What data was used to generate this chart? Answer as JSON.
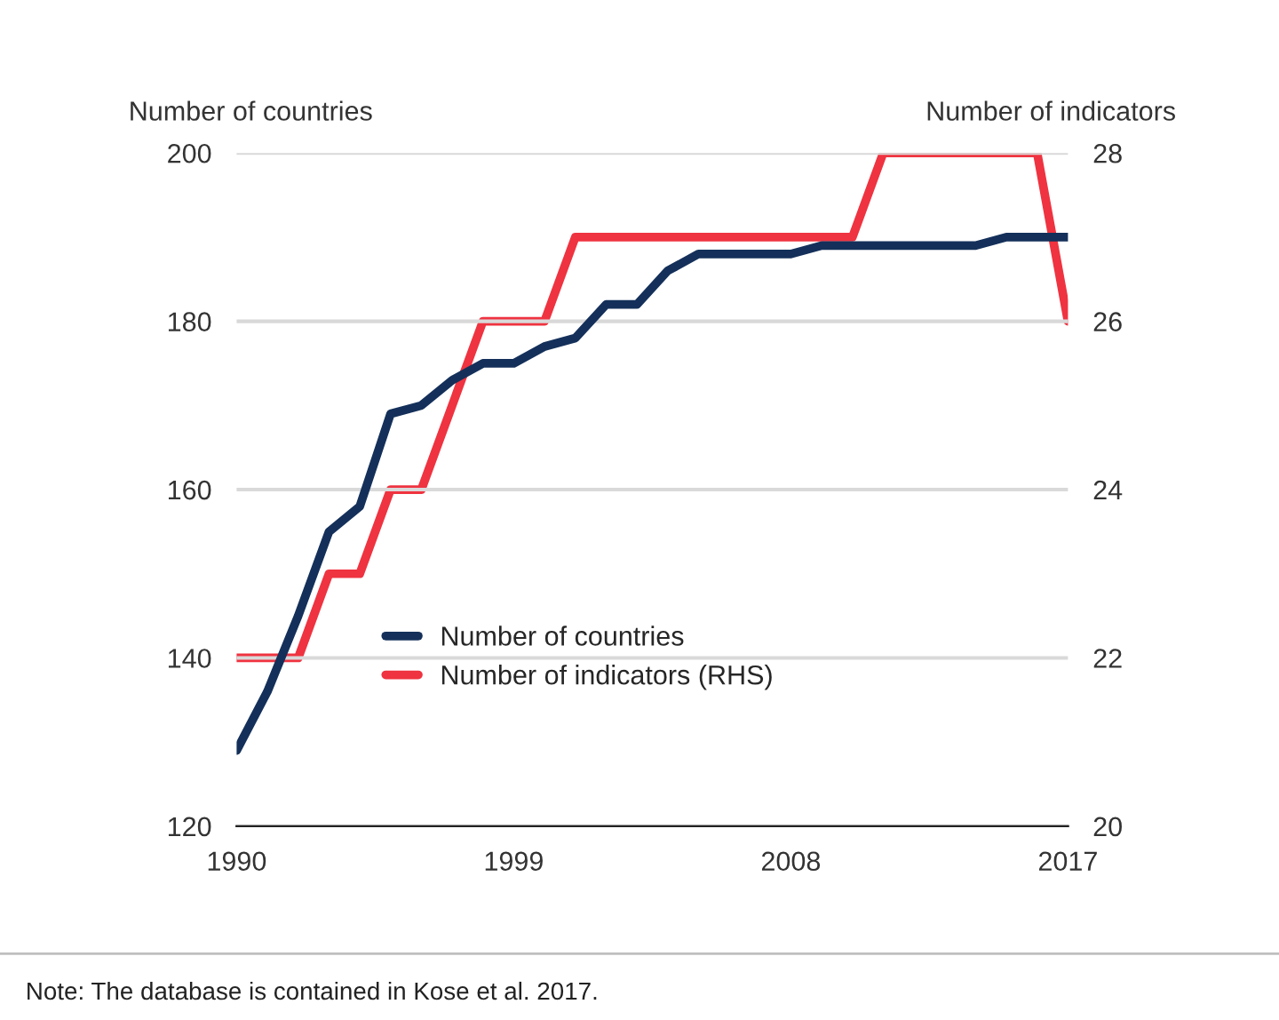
{
  "chart_data": {
    "type": "line",
    "ylabel": "Number of countries",
    "y2label": "Number of indicators",
    "x": [
      1990,
      1991,
      1992,
      1993,
      1994,
      1995,
      1996,
      1997,
      1998,
      1999,
      2000,
      2001,
      2002,
      2003,
      2004,
      2005,
      2006,
      2007,
      2008,
      2009,
      2010,
      2011,
      2012,
      2013,
      2014,
      2015,
      2016,
      2017
    ],
    "series": [
      {
        "name": "Number of countries",
        "color": "#14305a",
        "values": [
          129,
          136,
          145,
          155,
          158,
          169,
          170,
          173,
          175,
          175,
          177,
          178,
          182,
          182,
          186,
          188,
          188,
          188,
          188,
          189,
          189,
          189,
          189,
          189,
          189,
          190,
          190,
          190
        ]
      },
      {
        "name": "Number of indicators (RHS)",
        "color": "#ef3340",
        "axis": "y2",
        "values": [
          22,
          22,
          22,
          23,
          23,
          24,
          24,
          25,
          26,
          26,
          26,
          27,
          27,
          27,
          27,
          27,
          27,
          27,
          27,
          27,
          27,
          28,
          28,
          28,
          28,
          28,
          28,
          26
        ]
      }
    ],
    "xlim": [
      1990,
      2017
    ],
    "xticks": [
      1990,
      1999,
      2008,
      2017
    ],
    "ylim": [
      120,
      200
    ],
    "yticks": [
      120,
      140,
      160,
      180,
      200
    ],
    "y2lim": [
      20,
      28
    ],
    "y2ticks": [
      20,
      22,
      24,
      26,
      28
    ],
    "grid": "y",
    "legend": "left",
    "marker": "none",
    "line_style": "solid",
    "annotations": [
      "Note: The database is contained in Kose et al. 2017."
    ]
  }
}
